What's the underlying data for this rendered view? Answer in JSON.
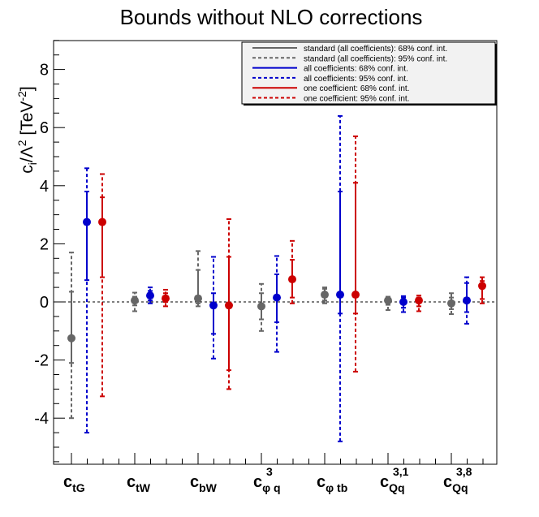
{
  "chart_data": {
    "type": "scatter",
    "subtype": "point-with-error-bars",
    "title": "Bounds without NLO corrections",
    "ylabel": {
      "base": "c",
      "sub": "i",
      "mid": "/Λ",
      "sup": "2",
      "unit_pre": " [TeV",
      "unit_sup": "-2",
      "unit_post": "]"
    },
    "ylim": [
      -5.5,
      9.0
    ],
    "yticks": [
      -4,
      -2,
      0,
      2,
      4,
      6,
      8
    ],
    "ytick_labels": [
      "-4",
      "-2",
      "0",
      "2",
      "4",
      "6",
      "8"
    ],
    "reference_line": 0,
    "categories": [
      {
        "main": "c",
        "sub": "tG",
        "sup": ""
      },
      {
        "main": "c",
        "sub": "tW",
        "sup": ""
      },
      {
        "main": "c",
        "sub": "bW",
        "sup": ""
      },
      {
        "main": "c",
        "sub": "φ q",
        "sup": "3"
      },
      {
        "main": "c",
        "sub": "φ tb",
        "sup": ""
      },
      {
        "main": "c",
        "sub": "Qq",
        "sup": "3,1"
      },
      {
        "main": "c",
        "sub": "Qq",
        "sup": "3,8"
      }
    ],
    "series": [
      {
        "name": "standard",
        "color": "#666666",
        "points": [
          {
            "value": -1.25,
            "ci68": [
              -2.1,
              0.35
            ],
            "ci95": [
              -4.0,
              1.7
            ]
          },
          {
            "value": 0.05,
            "ci68": [
              -0.12,
              0.18
            ],
            "ci95": [
              -0.32,
              0.32
            ]
          },
          {
            "value": 0.12,
            "ci68": [
              -0.05,
              1.1
            ],
            "ci95": [
              -0.15,
              1.75
            ]
          },
          {
            "value": -0.15,
            "ci68": [
              -0.6,
              0.3
            ],
            "ci95": [
              -1.0,
              0.62
            ]
          },
          {
            "value": 0.25,
            "ci68": [
              0.05,
              0.45
            ],
            "ci95": [
              -0.05,
              0.5
            ]
          },
          {
            "value": 0.05,
            "ci68": [
              -0.1,
              0.15
            ],
            "ci95": [
              -0.28,
              0.18
            ]
          },
          {
            "value": -0.05,
            "ci68": [
              -0.25,
              0.15
            ],
            "ci95": [
              -0.42,
              0.3
            ]
          }
        ]
      },
      {
        "name": "all coefficients",
        "color": "#0000cc",
        "points": [
          {
            "value": 2.75,
            "ci68": [
              0.75,
              3.8
            ],
            "ci95": [
              -4.5,
              4.6
            ]
          },
          {
            "value": 0.22,
            "ci68": [
              0.05,
              0.38
            ],
            "ci95": [
              -0.05,
              0.5
            ]
          },
          {
            "value": -0.12,
            "ci68": [
              -1.1,
              0.3
            ],
            "ci95": [
              -1.95,
              1.55
            ]
          },
          {
            "value": 0.15,
            "ci68": [
              -0.7,
              0.95
            ],
            "ci95": [
              -1.72,
              1.58
            ]
          },
          {
            "value": 0.25,
            "ci68": [
              -0.4,
              3.8
            ],
            "ci95": [
              -4.8,
              6.4
            ]
          },
          {
            "value": 0.0,
            "ci68": [
              -0.2,
              0.15
            ],
            "ci95": [
              -0.35,
              0.2
            ]
          },
          {
            "value": 0.05,
            "ci68": [
              -0.35,
              0.65
            ],
            "ci95": [
              -0.75,
              0.85
            ]
          }
        ]
      },
      {
        "name": "one coefficient",
        "color": "#cc0000",
        "points": [
          {
            "value": 2.75,
            "ci68": [
              0.85,
              3.6
            ],
            "ci95": [
              -3.25,
              4.4
            ]
          },
          {
            "value": 0.12,
            "ci68": [
              0.0,
              0.3
            ],
            "ci95": [
              -0.15,
              0.42
            ]
          },
          {
            "value": -0.12,
            "ci68": [
              -2.35,
              1.55
            ],
            "ci95": [
              -3.0,
              2.85
            ]
          },
          {
            "value": 0.78,
            "ci68": [
              0.15,
              1.45
            ],
            "ci95": [
              -0.05,
              2.1
            ]
          },
          {
            "value": 0.25,
            "ci68": [
              -0.4,
              4.1
            ],
            "ci95": [
              -2.4,
              5.7
            ]
          },
          {
            "value": 0.05,
            "ci68": [
              -0.15,
              0.15
            ],
            "ci95": [
              -0.32,
              0.22
            ]
          },
          {
            "value": 0.55,
            "ci68": [
              0.1,
              0.72
            ],
            "ci95": [
              -0.05,
              0.85
            ]
          }
        ]
      }
    ],
    "legend": {
      "position": "top-right",
      "entries": [
        {
          "label": "standard (all coefficients): 68% conf. int.",
          "color": "#666666",
          "style": "solid"
        },
        {
          "label": "standard (all coefficients): 95% conf. int.",
          "color": "#666666",
          "style": "dashed"
        },
        {
          "label": "all coefficients: 68% conf. int.",
          "color": "#0000cc",
          "style": "solid"
        },
        {
          "label": "all coefficients: 95% conf. int.",
          "color": "#0000cc",
          "style": "dashed"
        },
        {
          "label": "one coefficient: 68% conf. int.",
          "color": "#cc0000",
          "style": "solid"
        },
        {
          "label": "one coefficient: 95% conf. int.",
          "color": "#cc0000",
          "style": "dashed"
        }
      ]
    }
  }
}
